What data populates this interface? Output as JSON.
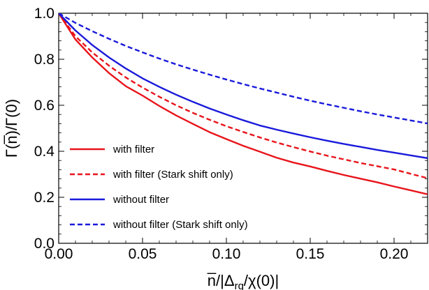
{
  "chart_data": {
    "type": "line",
    "xlabel": "n̅/|Δrq/χ(0)|",
    "ylabel": "Γ(n̅)/Γ(0)",
    "xlim": [
      0.0,
      0.22
    ],
    "ylim": [
      0.0,
      1.0
    ],
    "x_ticks": [
      "0.00",
      "0.05",
      "0.10",
      "0.15",
      "0.20"
    ],
    "y_ticks": [
      "0.0",
      "0.2",
      "0.4",
      "0.6",
      "0.8",
      "1.0"
    ],
    "grid": false,
    "legend_position": "bottom-left",
    "series": [
      {
        "name": "with filter",
        "color": "#e8141b",
        "dash": "solid",
        "x": [
          0.0,
          0.01,
          0.02,
          0.03,
          0.04,
          0.05,
          0.06,
          0.07,
          0.08,
          0.09,
          0.1,
          0.11,
          0.12,
          0.13,
          0.14,
          0.15,
          0.16,
          0.17,
          0.18,
          0.19,
          0.2,
          0.21,
          0.22
        ],
        "y": [
          1.0,
          0.886,
          0.808,
          0.74,
          0.683,
          0.642,
          0.597,
          0.556,
          0.519,
          0.483,
          0.453,
          0.424,
          0.398,
          0.372,
          0.351,
          0.334,
          0.315,
          0.297,
          0.281,
          0.265,
          0.247,
          0.23,
          0.213
        ]
      },
      {
        "name": "with filter (Stark shift only)",
        "color": "#e8141b",
        "dash": "dashed",
        "x": [
          0.0,
          0.01,
          0.02,
          0.03,
          0.04,
          0.05,
          0.06,
          0.07,
          0.08,
          0.09,
          0.1,
          0.11,
          0.12,
          0.13,
          0.14,
          0.15,
          0.16,
          0.17,
          0.18,
          0.19,
          0.2,
          0.21,
          0.22
        ],
        "y": [
          1.0,
          0.9,
          0.83,
          0.772,
          0.721,
          0.677,
          0.637,
          0.6,
          0.567,
          0.537,
          0.509,
          0.484,
          0.46,
          0.438,
          0.418,
          0.399,
          0.381,
          0.365,
          0.349,
          0.335,
          0.321,
          0.302,
          0.283
        ]
      },
      {
        "name": "without filter",
        "color": "#1a1adb",
        "dash": "solid",
        "x": [
          0.0,
          0.01,
          0.02,
          0.03,
          0.04,
          0.05,
          0.06,
          0.07,
          0.08,
          0.09,
          0.1,
          0.11,
          0.12,
          0.13,
          0.14,
          0.15,
          0.16,
          0.17,
          0.18,
          0.19,
          0.2,
          0.21,
          0.22
        ],
        "y": [
          1.0,
          0.925,
          0.862,
          0.808,
          0.76,
          0.717,
          0.68,
          0.646,
          0.615,
          0.586,
          0.56,
          0.535,
          0.512,
          0.494,
          0.477,
          0.461,
          0.446,
          0.432,
          0.419,
          0.406,
          0.394,
          0.382,
          0.37
        ]
      },
      {
        "name": "without filter (Stark shift only)",
        "color": "#1a1adb",
        "dash": "dashed",
        "x": [
          0.0,
          0.01,
          0.02,
          0.03,
          0.04,
          0.05,
          0.06,
          0.07,
          0.08,
          0.09,
          0.1,
          0.11,
          0.12,
          0.13,
          0.14,
          0.15,
          0.16,
          0.17,
          0.18,
          0.19,
          0.2,
          0.21,
          0.22
        ],
        "y": [
          1.0,
          0.958,
          0.922,
          0.889,
          0.858,
          0.83,
          0.803,
          0.778,
          0.755,
          0.733,
          0.712,
          0.692,
          0.673,
          0.655,
          0.637,
          0.62,
          0.604,
          0.589,
          0.574,
          0.56,
          0.547,
          0.534,
          0.521
        ]
      }
    ]
  }
}
